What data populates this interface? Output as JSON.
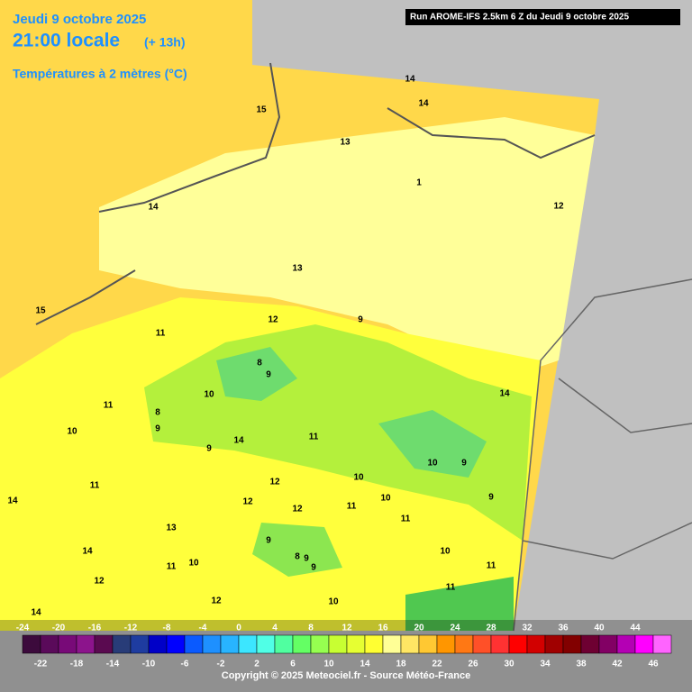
{
  "header": {
    "date": "Jeudi 9 octobre 2025",
    "time": "21:00 locale",
    "lead": "(+ 13h)",
    "variable": "Températures à 2 mètres (°C)",
    "run": "Run AROME-IFS 2.5km 6 Z du Jeudi 9 octobre 2025"
  },
  "legend": {
    "top_labels": [
      -24,
      -20,
      -16,
      -12,
      -8,
      -4,
      0,
      4,
      8,
      12,
      16,
      20,
      24,
      28,
      32,
      36,
      40,
      44
    ],
    "bottom_labels": [
      -22,
      -18,
      -14,
      -10,
      -6,
      -2,
      2,
      6,
      10,
      14,
      18,
      22,
      26,
      30,
      34,
      38,
      42,
      46
    ],
    "colors": [
      "#3c0a3c",
      "#5a0a5a",
      "#780a78",
      "#8c148c",
      "#5a0a50",
      "#283c78",
      "#1e3ca0",
      "#0000c8",
      "#0000ff",
      "#0a5aff",
      "#1e90ff",
      "#28b4ff",
      "#3ce6ff",
      "#50ffe6",
      "#50ffa0",
      "#64ff64",
      "#96ff50",
      "#c8ff32",
      "#e6ff32",
      "#ffff32",
      "#ffff96",
      "#ffe664",
      "#ffc832",
      "#ff9600",
      "#ff7814",
      "#ff5028",
      "#ff3232",
      "#ff0000",
      "#d20000",
      "#a00000",
      "#820000",
      "#6e0032",
      "#820064",
      "#b400b4",
      "#ff00ff",
      "#ff64ff"
    ]
  },
  "map": {
    "contour_labels": [
      14,
      14,
      15,
      13,
      1,
      12,
      14,
      13,
      15,
      12,
      11,
      9,
      8,
      9,
      10,
      14,
      8,
      9,
      11,
      10,
      9,
      14,
      10,
      9,
      10,
      11,
      11,
      12,
      12,
      14,
      9,
      10,
      11,
      9,
      12,
      13,
      14,
      11,
      12,
      10,
      9,
      8,
      9,
      10,
      11,
      10,
      11,
      12,
      11,
      14
    ]
  },
  "footer": {
    "copyright": "Copyright © 2025 Meteociel.fr - Source Météo-France"
  }
}
